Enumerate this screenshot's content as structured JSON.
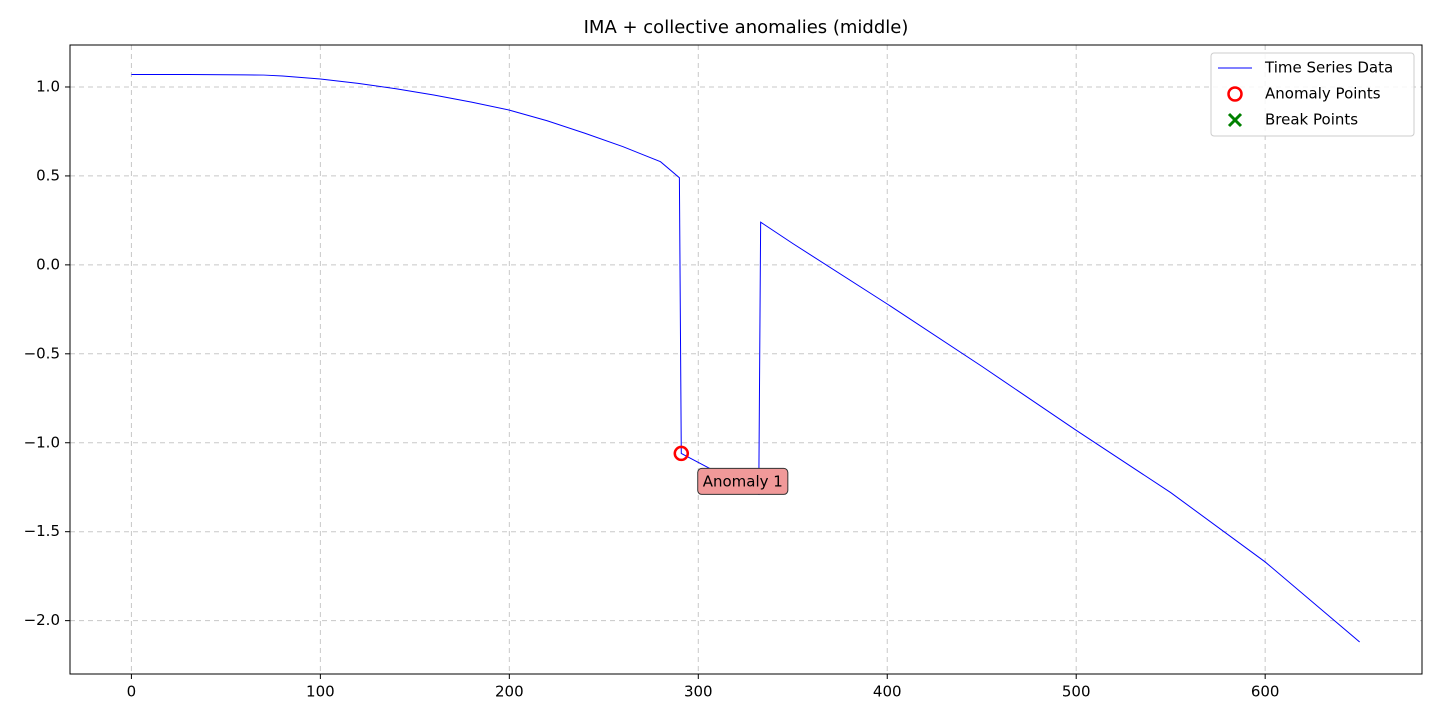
{
  "chart_data": {
    "type": "line",
    "title": "IMA + collective anomalies (middle)",
    "xlim": [
      -32.5,
      683
    ],
    "ylim": [
      -2.3,
      1.236
    ],
    "xticks": [
      0,
      100,
      200,
      300,
      400,
      500,
      600
    ],
    "yticks": [
      {
        "value": -2.0,
        "label": "−2.0"
      },
      {
        "value": -1.5,
        "label": "−1.5"
      },
      {
        "value": -1.0,
        "label": "−1.0"
      },
      {
        "value": -0.5,
        "label": "−0.5"
      },
      {
        "value": 0.0,
        "label": "0.0"
      },
      {
        "value": 0.5,
        "label": "0.5"
      },
      {
        "value": 1.0,
        "label": "1.0"
      }
    ],
    "grid": true,
    "legend": "upper right",
    "series": [
      {
        "name": "Time Series Data",
        "color": "#0000ff",
        "x": [
          0,
          30,
          60,
          70,
          80,
          100,
          120,
          140,
          160,
          180,
          200,
          220,
          240,
          260,
          280,
          290,
          291,
          332,
          333,
          350,
          400,
          450,
          500,
          550,
          600,
          650
        ],
        "values": [
          1.07,
          1.07,
          1.068,
          1.067,
          1.062,
          1.045,
          1.02,
          0.99,
          0.955,
          0.915,
          0.87,
          0.81,
          0.74,
          0.665,
          0.58,
          0.49,
          -1.06,
          -1.29,
          0.24,
          0.12,
          -0.22,
          -0.57,
          -0.93,
          -1.28,
          -1.67,
          -2.12
        ]
      }
    ],
    "anomalies": {
      "name": "Anomaly Points",
      "color": "#ff0000",
      "x": [
        291
      ],
      "values": [
        -1.06
      ],
      "labels": [
        "Anomaly 1"
      ]
    },
    "break_points": {
      "name": "Break Points",
      "color": "#008000",
      "x": [],
      "values": []
    }
  }
}
